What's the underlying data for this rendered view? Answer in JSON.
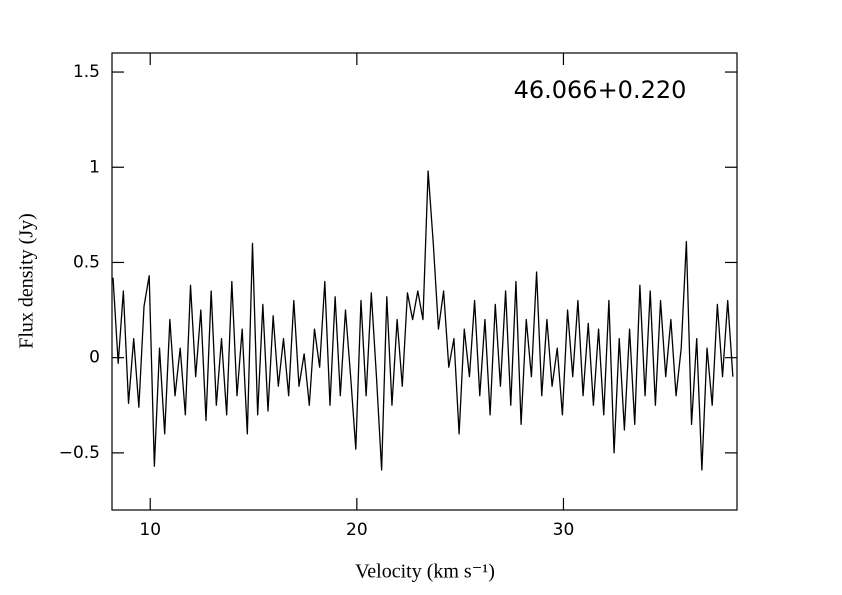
{
  "chart_data": {
    "type": "line",
    "title": "46.066+0.220",
    "xlabel": "Velocity (km s⁻¹)",
    "ylabel": "Flux density (Jy)",
    "color": "#000000",
    "xlim": [
      8.15,
      38.4
    ],
    "ylim": [
      -0.8,
      1.6
    ],
    "xticks": [
      10,
      20,
      30
    ],
    "yticks": [
      {
        "value": -0.5,
        "label": "−0.5"
      },
      0,
      0.5,
      1,
      1.5
    ],
    "mirror_ticks": true,
    "x": [
      8.2,
      8.45,
      8.7,
      8.95,
      9.2,
      9.45,
      9.7,
      9.95,
      10.2,
      10.45,
      10.7,
      10.95,
      11.2,
      11.45,
      11.7,
      11.95,
      12.2,
      12.45,
      12.7,
      12.95,
      13.2,
      13.45,
      13.7,
      13.95,
      14.2,
      14.45,
      14.7,
      14.95,
      15.2,
      15.45,
      15.7,
      15.95,
      16.2,
      16.45,
      16.7,
      16.95,
      17.2,
      17.45,
      17.7,
      17.95,
      18.2,
      18.45,
      18.7,
      18.95,
      19.2,
      19.45,
      19.7,
      19.95,
      20.2,
      20.45,
      20.7,
      20.95,
      21.2,
      21.45,
      21.7,
      21.95,
      22.2,
      22.45,
      22.7,
      22.95,
      23.2,
      23.45,
      23.7,
      23.95,
      24.2,
      24.45,
      24.7,
      24.95,
      25.2,
      25.45,
      25.7,
      25.95,
      26.2,
      26.45,
      26.7,
      26.95,
      27.2,
      27.45,
      27.7,
      27.95,
      28.2,
      28.45,
      28.7,
      28.95,
      29.2,
      29.45,
      29.7,
      29.95,
      30.2,
      30.45,
      30.7,
      30.95,
      31.2,
      31.45,
      31.7,
      31.95,
      32.2,
      32.45,
      32.7,
      32.95,
      33.2,
      33.45,
      33.7,
      33.95,
      34.2,
      34.45,
      34.7,
      34.95,
      35.2,
      35.45,
      35.7,
      35.95,
      36.2,
      36.45,
      36.7,
      36.95,
      37.2,
      37.45,
      37.7,
      37.95,
      38.2
    ],
    "values": [
      0.42,
      -0.03,
      0.35,
      -0.24,
      0.1,
      -0.26,
      0.27,
      0.43,
      -0.57,
      0.05,
      -0.4,
      0.2,
      -0.2,
      0.05,
      -0.3,
      0.38,
      -0.1,
      0.25,
      -0.33,
      0.35,
      -0.25,
      0.1,
      -0.3,
      0.4,
      -0.2,
      0.15,
      -0.4,
      0.6,
      -0.3,
      0.28,
      -0.28,
      0.22,
      -0.15,
      0.1,
      -0.2,
      0.3,
      -0.15,
      0.02,
      -0.25,
      0.15,
      -0.05,
      0.4,
      -0.25,
      0.32,
      -0.2,
      0.25,
      -0.1,
      -0.48,
      0.3,
      -0.2,
      0.34,
      -0.1,
      -0.59,
      0.32,
      -0.25,
      0.2,
      -0.15,
      0.34,
      0.2,
      0.35,
      0.2,
      0.98,
      0.6,
      0.15,
      0.35,
      -0.05,
      0.1,
      -0.4,
      0.15,
      -0.1,
      0.3,
      -0.2,
      0.2,
      -0.3,
      0.28,
      -0.15,
      0.35,
      -0.25,
      0.4,
      -0.35,
      0.2,
      -0.1,
      0.45,
      -0.2,
      0.2,
      -0.15,
      0.05,
      -0.3,
      0.25,
      -0.1,
      0.3,
      -0.2,
      0.18,
      -0.25,
      0.15,
      -0.3,
      0.3,
      -0.5,
      0.1,
      -0.38,
      0.15,
      -0.35,
      0.38,
      -0.2,
      0.35,
      -0.25,
      0.3,
      -0.1,
      0.2,
      -0.2,
      0.05,
      0.61,
      -0.35,
      0.1,
      -0.59,
      0.05,
      -0.25,
      0.28,
      -0.1,
      0.3,
      -0.1
    ]
  }
}
